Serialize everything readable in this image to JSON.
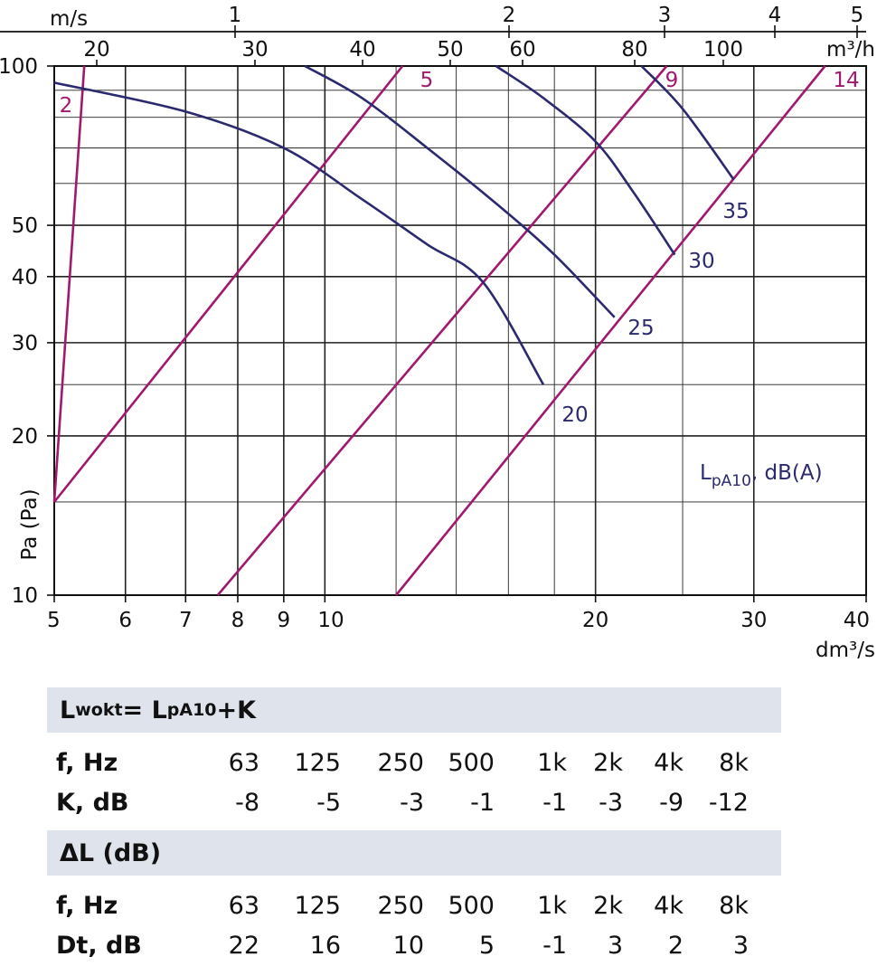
{
  "chart_data": {
    "type": "line",
    "x_axis": {
      "label": "dm³/s",
      "scale": "log",
      "range": [
        5,
        40
      ],
      "ticks": [
        "5",
        "6",
        "7",
        "8",
        "9",
        "10",
        "20",
        "30",
        "40"
      ]
    },
    "y_axis": {
      "label": "Pa (Pa)",
      "scale": "log",
      "range": [
        10,
        100
      ],
      "ticks": [
        "10",
        "20",
        "30",
        "40",
        "50",
        "100"
      ]
    },
    "top_axis_ms": {
      "label": "m/s",
      "ticks": [
        "1",
        "2",
        "3",
        "4",
        "5"
      ]
    },
    "top_axis_m3h": {
      "label": "m³/h",
      "ticks": [
        "20",
        "30",
        "40",
        "50",
        "60",
        "80",
        "100"
      ]
    },
    "grid": true,
    "legend_text": {
      "main": "L",
      "sub": "pA10",
      "rest": ", dB(A)"
    },
    "fan_curves": [
      {
        "name": "20",
        "points": [
          [
            5,
            93
          ],
          [
            7,
            82
          ],
          [
            9,
            70
          ],
          [
            11,
            56
          ],
          [
            13,
            46
          ],
          [
            15,
            39
          ],
          [
            17.5,
            25
          ]
        ]
      },
      {
        "name": "25",
        "points": [
          [
            9.5,
            100
          ],
          [
            11,
            87
          ],
          [
            13,
            70
          ],
          [
            15.5,
            55
          ],
          [
            18,
            44
          ],
          [
            21,
            33.5
          ]
        ]
      },
      {
        "name": "30",
        "points": [
          [
            15.5,
            100
          ],
          [
            17.5,
            87
          ],
          [
            20,
            72
          ],
          [
            22,
            58
          ],
          [
            24.5,
            44
          ]
        ]
      },
      {
        "name": "35",
        "points": [
          [
            22.5,
            100
          ],
          [
            25,
            83
          ],
          [
            28.5,
            61
          ]
        ]
      }
    ],
    "damper_lines": [
      {
        "name": "2",
        "points": [
          [
            5,
            15
          ],
          [
            5.4,
            100
          ]
        ]
      },
      {
        "name": "5",
        "points": [
          [
            5,
            15
          ],
          [
            12.2,
            100
          ]
        ]
      },
      {
        "name": "9",
        "points": [
          [
            7.6,
            10
          ],
          [
            24,
            100
          ]
        ]
      },
      {
        "name": "14",
        "points": [
          [
            12,
            10
          ],
          [
            36,
            100
          ]
        ]
      }
    ]
  },
  "tables": {
    "t1_header": {
      "main": "L",
      "sub1": "wokt",
      "mid": "= L",
      "sub2": "pA10",
      "tail": "+K"
    },
    "t1_freq_label": "f, Hz",
    "t1_val_label": "K, dB",
    "t2_header": "ΔL (dB)",
    "t2_freq_label": "f, Hz",
    "t2_val_label": "Dt, dB",
    "freqs": [
      "63",
      "125",
      "250",
      "500",
      "1k",
      "2k",
      "4k",
      "8k"
    ],
    "k_values": [
      "-8",
      "-5",
      "-3",
      "-1",
      "-1",
      "-3",
      "-9",
      "-12"
    ],
    "dt_values": [
      "22",
      "16",
      "10",
      "5",
      "-1",
      "3",
      "2",
      "3"
    ]
  },
  "colors": {
    "fan": "#2b2a6e",
    "damper": "#a0196e",
    "grid": "#222222",
    "header_bg": "#dfe3ec"
  }
}
